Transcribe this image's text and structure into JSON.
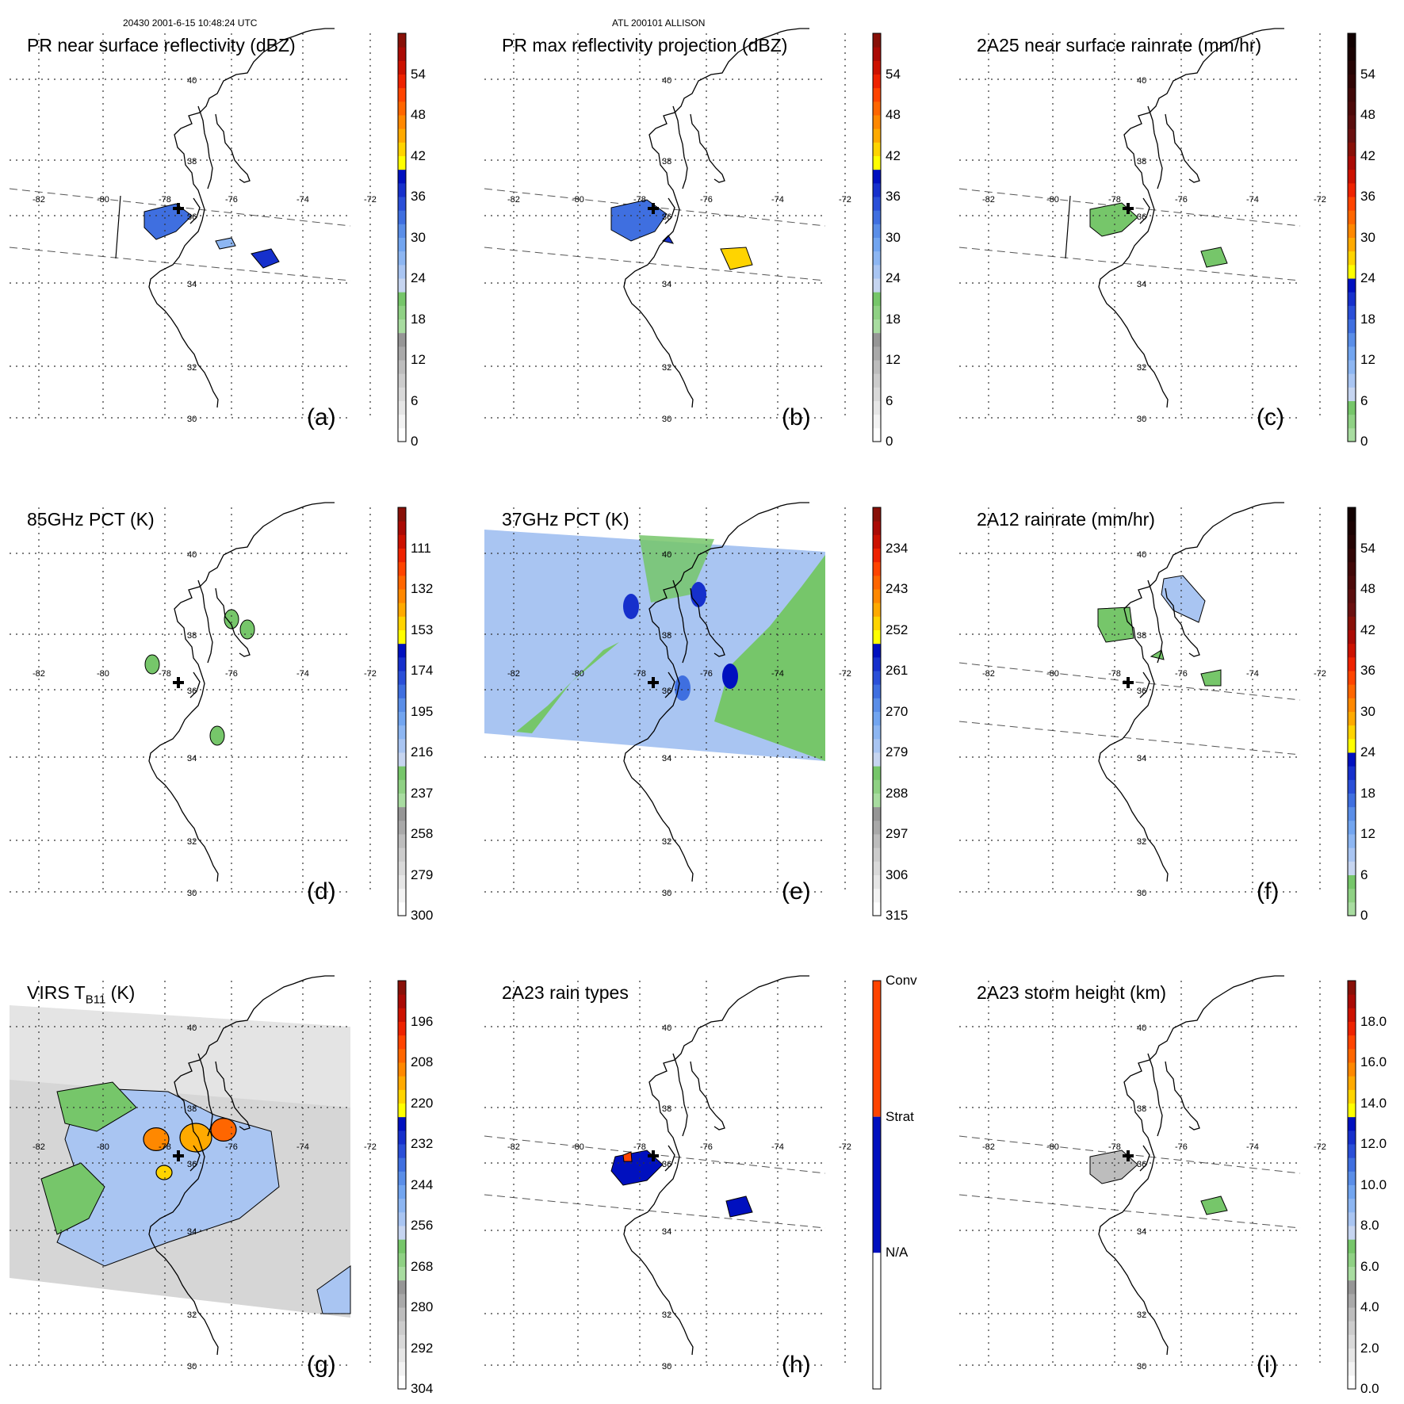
{
  "header": {
    "orbit_time": "20430 2001-6-15 10:48:24 UTC",
    "storm": "ATL 200101 ALLISON"
  },
  "colors": {
    "coast": "#000000",
    "grid": "#333333",
    "swath": "#555555",
    "storm_marker": "#000000"
  },
  "panels": [
    {
      "id": "a",
      "label": "(a)",
      "title": "PR near surface reflectivity (dBZ)",
      "title_sub": "",
      "colorbar": {
        "kind": "reflectivity",
        "ticks": [
          "0",
          "6",
          "12",
          "18",
          "24",
          "30",
          "36",
          "42",
          "48",
          "54"
        ]
      },
      "lon_labels": [
        "-82",
        "-80",
        "-78",
        "-76",
        "-74",
        "-72"
      ],
      "lat_labels": [
        "40",
        "38",
        "36",
        "34",
        "32",
        "30"
      ]
    },
    {
      "id": "b",
      "label": "(b)",
      "title": "PR max reflectivity projection (dBZ)",
      "title_sub": "",
      "colorbar": {
        "kind": "reflectivity",
        "ticks": [
          "0",
          "6",
          "12",
          "18",
          "24",
          "30",
          "36",
          "42",
          "48",
          "54"
        ]
      },
      "lon_labels": [
        "-82",
        "-80",
        "-78",
        "-76",
        "-74",
        "-72"
      ],
      "lat_labels": [
        "40",
        "38",
        "36",
        "34",
        "32",
        "30"
      ]
    },
    {
      "id": "c",
      "label": "(c)",
      "title": "2A25 near surface rainrate (mm/hr)",
      "title_sub": "",
      "colorbar": {
        "kind": "rainrate",
        "ticks": [
          "0",
          "6",
          "12",
          "18",
          "24",
          "30",
          "36",
          "42",
          "48",
          "54"
        ]
      },
      "lon_labels": [
        "-82",
        "-80",
        "-78",
        "-76",
        "-74",
        "-72"
      ],
      "lat_labels": [
        "40",
        "38",
        "36",
        "34",
        "32",
        "30"
      ]
    },
    {
      "id": "d",
      "label": "(d)",
      "title": "85GHz PCT (K)",
      "title_sub": "",
      "colorbar": {
        "kind": "tb",
        "ticks": [
          "300",
          "279",
          "258",
          "237",
          "216",
          "195",
          "174",
          "153",
          "132",
          "111"
        ]
      },
      "lon_labels": [
        "-82",
        "-80",
        "-78",
        "-76",
        "-74",
        "-72"
      ],
      "lat_labels": [
        "40",
        "38",
        "36",
        "34",
        "32",
        "30"
      ]
    },
    {
      "id": "e",
      "label": "(e)",
      "title": "37GHz PCT (K)",
      "title_sub": "",
      "colorbar": {
        "kind": "tb",
        "ticks": [
          "315",
          "306",
          "297",
          "288",
          "279",
          "270",
          "261",
          "252",
          "243",
          "234"
        ]
      },
      "lon_labels": [
        "-82",
        "-80",
        "-78",
        "-76",
        "-74",
        "-72"
      ],
      "lat_labels": [
        "40",
        "38",
        "36",
        "34",
        "32",
        "30"
      ]
    },
    {
      "id": "f",
      "label": "(f)",
      "title": "2A12 rainrate (mm/hr)",
      "title_sub": "",
      "colorbar": {
        "kind": "rainrate",
        "ticks": [
          "0",
          "6",
          "12",
          "18",
          "24",
          "30",
          "36",
          "42",
          "48",
          "54"
        ]
      },
      "lon_labels": [
        "-82",
        "-80",
        "-78",
        "-76",
        "-74",
        "-72"
      ],
      "lat_labels": [
        "40",
        "38",
        "36",
        "34",
        "32",
        "30"
      ]
    },
    {
      "id": "g",
      "label": "(g)",
      "title": "VIRS T",
      "title_sub": "B11",
      "title_tail": " (K)",
      "colorbar": {
        "kind": "tb",
        "ticks": [
          "304",
          "292",
          "280",
          "268",
          "256",
          "244",
          "232",
          "220",
          "208",
          "196"
        ]
      },
      "lon_labels": [
        "-82",
        "-80",
        "-78",
        "-76",
        "-74",
        "-72"
      ],
      "lat_labels": [
        "40",
        "38",
        "36",
        "34",
        "32",
        "30"
      ]
    },
    {
      "id": "h",
      "label": "(h)",
      "title": "2A23 rain types",
      "title_sub": "",
      "colorbar": {
        "kind": "raintype",
        "ticks": [
          "N/A",
          "Strat",
          "Conv"
        ]
      },
      "lon_labels": [
        "-82",
        "-80",
        "-78",
        "-76",
        "-74",
        "-72"
      ],
      "lat_labels": [
        "40",
        "38",
        "36",
        "34",
        "32",
        "30"
      ]
    },
    {
      "id": "i",
      "label": "(i)",
      "title": "2A23 storm height (km)",
      "title_sub": "",
      "colorbar": {
        "kind": "height",
        "ticks": [
          "0.0",
          "2.0",
          "4.0",
          "6.0",
          "8.0",
          "10.0",
          "12.0",
          "14.0",
          "16.0",
          "18.0"
        ]
      },
      "lon_labels": [
        "-82",
        "-80",
        "-78",
        "-76",
        "-74",
        "-72"
      ],
      "lat_labels": [
        "40",
        "38",
        "36",
        "34",
        "32",
        "30"
      ]
    }
  ]
}
